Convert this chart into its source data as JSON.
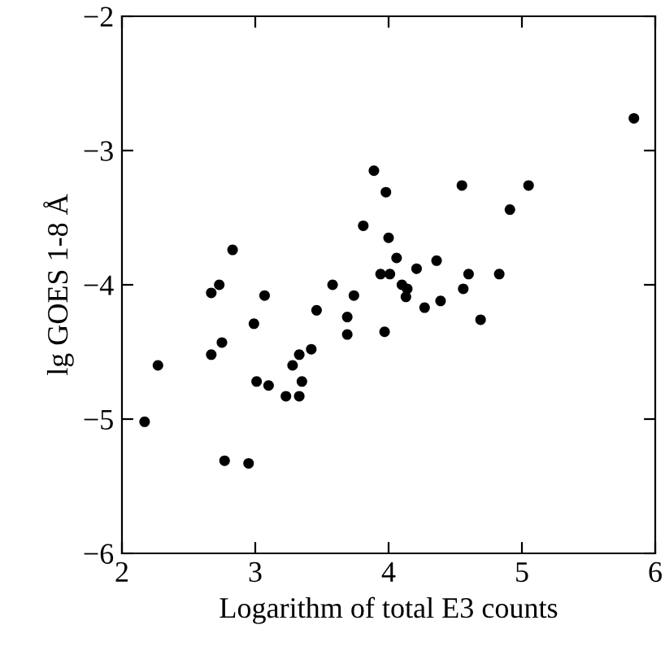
{
  "chart_data": {
    "type": "scatter",
    "xlabel": "Logarithm of total E3 counts",
    "ylabel": "lg GOES 1-8 Å",
    "xlim": [
      2,
      6
    ],
    "ylim": [
      -6,
      -2
    ],
    "xticks": [
      2,
      3,
      4,
      5,
      6
    ],
    "yticks": [
      {
        "value": -6,
        "label": "−6"
      },
      {
        "value": -5,
        "label": "−5"
      },
      {
        "value": -4,
        "label": "−4"
      },
      {
        "value": -3,
        "label": "−3"
      },
      {
        "value": -2,
        "label": "−2"
      }
    ],
    "grid": false,
    "legend": false,
    "marker": "circle",
    "series": [
      {
        "color": "#000000",
        "x": [
          2.17,
          2.27,
          2.67,
          2.73,
          2.83,
          2.67,
          2.75,
          2.77,
          2.95,
          2.99,
          3.07,
          3.01,
          3.1,
          3.23,
          3.33,
          3.28,
          3.35,
          3.33,
          3.42,
          3.46,
          3.58,
          3.74,
          3.69,
          3.69,
          3.81,
          3.89,
          3.98,
          4.0,
          3.94,
          4.01,
          3.97,
          4.06,
          4.1,
          4.14,
          4.13,
          4.21,
          4.27,
          4.36,
          4.39,
          4.55,
          4.56,
          4.6,
          4.69,
          4.83,
          4.91,
          5.05,
          5.84
        ],
        "values": [
          -5.02,
          -4.6,
          -4.06,
          -4.0,
          -3.74,
          -4.52,
          -4.43,
          -5.31,
          -5.33,
          -4.29,
          -4.08,
          -4.72,
          -4.75,
          -4.83,
          -4.83,
          -4.6,
          -4.72,
          -4.52,
          -4.48,
          -4.19,
          -4.0,
          -4.08,
          -4.24,
          -4.37,
          -3.56,
          -3.15,
          -3.31,
          -3.65,
          -3.92,
          -3.92,
          -4.35,
          -3.8,
          -4.0,
          -4.03,
          -4.09,
          -3.88,
          -4.17,
          -3.82,
          -4.12,
          -3.26,
          -4.03,
          -3.92,
          -4.26,
          -3.92,
          -3.44,
          -3.26,
          -2.76
        ]
      }
    ]
  }
}
